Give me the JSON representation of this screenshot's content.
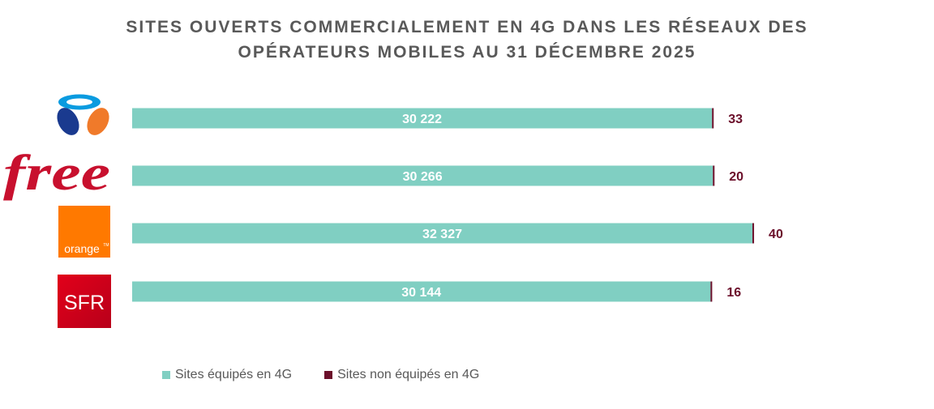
{
  "title": {
    "line1": "SITES OUVERTS COMMERCIALEMENT EN 4G DANS LES RÉSEAUX DES",
    "line2": "OPÉRATEURS MOBILES AU 31 DÉCEMBRE 2025"
  },
  "colors": {
    "equipped": "#80CFC2",
    "not_equipped": "#6B0F2A",
    "title": "#595959"
  },
  "chart_data": {
    "type": "bar",
    "orientation": "horizontal",
    "stacked": true,
    "title": "SITES OUVERTS COMMERCIALEMENT EN 4G DANS LES RÉSEAUX DES OPÉRATEURS MOBILES AU 31 DÉCEMBRE 2025",
    "categories": [
      "Bouygues Telecom",
      "Free",
      "Orange",
      "SFR"
    ],
    "category_icons": [
      "bouygues-logo",
      "free-logo",
      "orange-logo",
      "sfr-logo"
    ],
    "series": [
      {
        "name": "Sites équipés en 4G",
        "values": [
          30222,
          30266,
          32327,
          30144
        ],
        "labels": [
          "30 222",
          "30 266",
          "32 327",
          "30 144"
        ]
      },
      {
        "name": "Sites non équipés en 4G",
        "values": [
          33,
          20,
          40,
          16
        ],
        "labels": [
          "33",
          "20",
          "40",
          "16"
        ]
      }
    ],
    "legend_position": "bottom-left",
    "grid": false
  },
  "legend": {
    "equipped": "Sites équipés en 4G",
    "not_equipped": "Sites non équipés en 4G"
  },
  "logos": {
    "free": "free",
    "orange": "orange",
    "orange_tm": "TM",
    "sfr": "SFR"
  }
}
